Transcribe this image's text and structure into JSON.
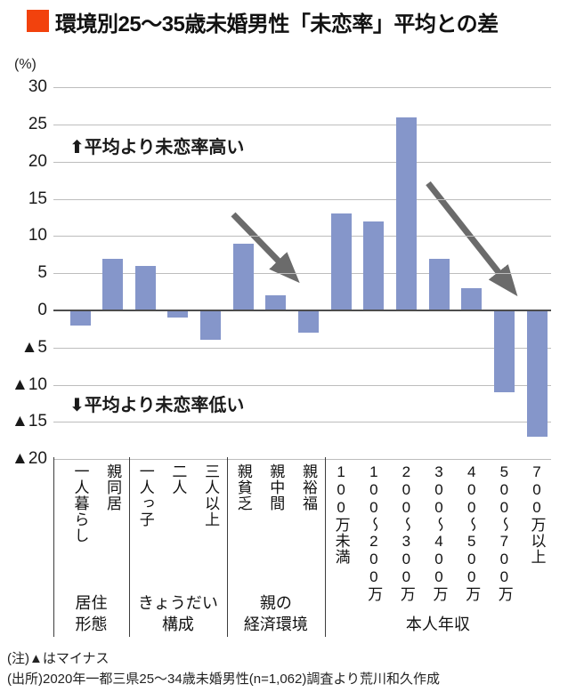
{
  "title": {
    "text": "環境別25〜35歳未婚男性「未恋率」平均との差",
    "bullet_color": "#f2420d"
  },
  "chart_data": {
    "type": "bar",
    "title": "環境別25〜35歳未婚男性「未恋率」平均との差",
    "unit_label": "(%)",
    "ylim": [
      -20,
      30
    ],
    "grid": true,
    "bar_color": "#8596ca",
    "grid_color": "#bdbdbd",
    "zero_line_color": "#4d4d4d",
    "arrow_color": "#6b6b6b",
    "y_ticks": [
      {
        "v": 30,
        "label": "30"
      },
      {
        "v": 25,
        "label": "25"
      },
      {
        "v": 20,
        "label": "20"
      },
      {
        "v": 15,
        "label": "15"
      },
      {
        "v": 10,
        "label": "10"
      },
      {
        "v": 5,
        "label": "5"
      },
      {
        "v": 0,
        "label": "0"
      },
      {
        "v": -5,
        "label": "▲5"
      },
      {
        "v": -10,
        "label": "▲10"
      },
      {
        "v": -15,
        "label": "▲15"
      },
      {
        "v": -20,
        "label": "▲20"
      }
    ],
    "categories": [
      "一人暮らし",
      "親同居",
      "一人っ子",
      "二人",
      "三人以上",
      "親貧乏",
      "親中間",
      "親裕福",
      "100万未満",
      "100〜200万",
      "200〜300万",
      "300〜400万",
      "400〜500万",
      "500〜700万",
      "700万以上"
    ],
    "values": [
      -2,
      7,
      6,
      -1,
      -4,
      9,
      2,
      -3,
      13,
      12,
      26,
      7,
      3,
      -11,
      -17
    ],
    "groups": [
      {
        "label_lines": [
          "居住",
          "形態"
        ],
        "from": 0,
        "to": 1
      },
      {
        "label_lines": [
          "きょうだい",
          "構成"
        ],
        "from": 2,
        "to": 4
      },
      {
        "label_lines": [
          "親の",
          "経済環境"
        ],
        "from": 5,
        "to": 7
      },
      {
        "label_lines": [
          "本人年収"
        ],
        "from": 8,
        "to": 14
      }
    ],
    "annotations": {
      "high": "⬆平均より未恋率高い",
      "low": "⬇平均より未恋率低い"
    }
  },
  "footnotes": {
    "note": "(注)▲はマイナス",
    "source": "(出所)2020年一都三県25〜34歳未婚男性(n=1,062)調査より荒川和久作成"
  }
}
